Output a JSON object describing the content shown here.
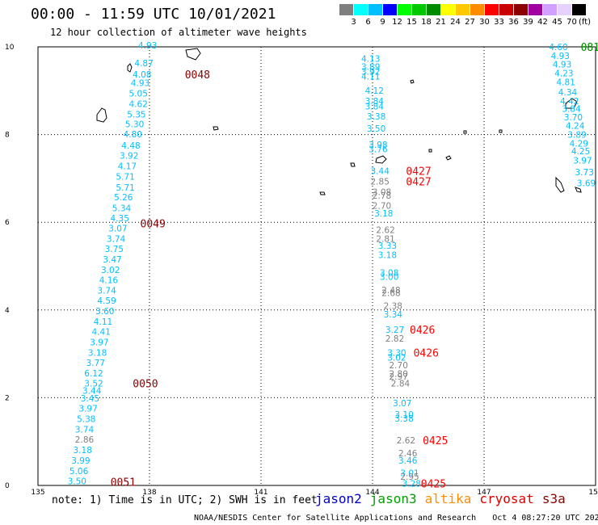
{
  "header": {
    "title": "00:00 - 11:59 UTC 10/01/2021",
    "subtitle": "12 hour collection of altimeter wave heights"
  },
  "color_scale": {
    "labels": [
      "3",
      "6",
      "9",
      "12",
      "15",
      "18",
      "21",
      "24",
      "27",
      "30",
      "33",
      "36",
      "39",
      "42",
      "45",
      "70"
    ],
    "units": "(ft)",
    "colors": [
      "#7f7f7f",
      "#00ffff",
      "#00bfff",
      "#0000ff",
      "#00ff00",
      "#00c800",
      "#008c00",
      "#ffff00",
      "#ffc800",
      "#ff8c00",
      "#ff0000",
      "#c80000",
      "#8c0000",
      "#a000a0",
      "#d2a0ff",
      "#e6d2ff",
      "#000000"
    ]
  },
  "axes": {
    "x_ticks": [
      "135",
      "138",
      "141",
      "144",
      "147",
      "150"
    ],
    "y_ticks": [
      "0",
      "2",
      "4",
      "6",
      "8",
      "10"
    ],
    "x_range": [
      135,
      150
    ],
    "y_range": [
      0,
      10
    ]
  },
  "time_labels": [
    {
      "text": "0048",
      "lon": 138.95,
      "lat": 9.37,
      "color": "#8b0000"
    },
    {
      "text": "0049",
      "lon": 137.75,
      "lat": 5.98,
      "color": "#8b0000"
    },
    {
      "text": "0050",
      "lon": 137.55,
      "lat": 2.33,
      "color": "#8b0000"
    },
    {
      "text": "0051",
      "lon": 136.95,
      "lat": 0.08,
      "color": "#8b0000"
    },
    {
      "text": "0427",
      "lon": 144.9,
      "lat": 7.17,
      "color": "#ff0000"
    },
    {
      "text": "0427",
      "lon": 144.9,
      "lat": 6.93,
      "color": "#ff0000"
    },
    {
      "text": "0426",
      "lon": 145.0,
      "lat": 3.55,
      "color": "#ff0000"
    },
    {
      "text": "0426",
      "lon": 145.1,
      "lat": 3.03,
      "color": "#ff0000"
    },
    {
      "text": "0425",
      "lon": 145.35,
      "lat": 1.03,
      "color": "#ff0000"
    },
    {
      "text": "0425",
      "lon": 145.3,
      "lat": 0.05,
      "color": "#ff0000"
    },
    {
      "text": "081",
      "lon": 149.6,
      "lat": 10.0,
      "color": "#008c00"
    }
  ],
  "tracks": [
    {
      "name": "jason3-track-1",
      "points": [
        {
          "v": "4.93",
          "lon": 137.95,
          "lat": 10.04,
          "color": "#00bfff"
        },
        {
          "v": "4.87",
          "lon": 137.85,
          "lat": 9.63,
          "color": "#00bfff"
        },
        {
          "v": "4.08",
          "lon": 137.8,
          "lat": 9.37,
          "color": "#00bfff"
        },
        {
          "v": "4.93",
          "lon": 137.75,
          "lat": 9.18,
          "color": "#00bfff"
        },
        {
          "v": "5.05",
          "lon": 137.7,
          "lat": 8.94,
          "color": "#00bfff"
        },
        {
          "v": "4.62",
          "lon": 137.7,
          "lat": 8.7,
          "color": "#00bfff"
        },
        {
          "v": "5.35",
          "lon": 137.65,
          "lat": 8.46,
          "color": "#00bfff"
        },
        {
          "v": "5.30",
          "lon": 137.6,
          "lat": 8.24,
          "color": "#00bfff"
        },
        {
          "v": "4.80",
          "lon": 137.55,
          "lat": 8.01,
          "color": "#00bfff"
        },
        {
          "v": "4.48",
          "lon": 137.5,
          "lat": 7.75,
          "color": "#00bfff"
        },
        {
          "v": "3.92",
          "lon": 137.45,
          "lat": 7.52,
          "color": "#00bfff"
        },
        {
          "v": "4.17",
          "lon": 137.4,
          "lat": 7.28,
          "color": "#00bfff"
        },
        {
          "v": "5.71",
          "lon": 137.35,
          "lat": 7.04,
          "color": "#00bfff"
        },
        {
          "v": "5.71",
          "lon": 137.35,
          "lat": 6.8,
          "color": "#00bfff"
        },
        {
          "v": "5.26",
          "lon": 137.3,
          "lat": 6.57,
          "color": "#00bfff"
        },
        {
          "v": "5.34",
          "lon": 137.25,
          "lat": 6.33,
          "color": "#00bfff"
        },
        {
          "v": "4.35",
          "lon": 137.2,
          "lat": 6.1,
          "color": "#00bfff"
        },
        {
          "v": "3.07",
          "lon": 137.15,
          "lat": 5.87,
          "color": "#00bfff"
        },
        {
          "v": "3.74",
          "lon": 137.1,
          "lat": 5.63,
          "color": "#00bfff"
        },
        {
          "v": "3.75",
          "lon": 137.05,
          "lat": 5.4,
          "color": "#00bfff"
        },
        {
          "v": "3.47",
          "lon": 137.0,
          "lat": 5.16,
          "color": "#00bfff"
        },
        {
          "v": "3.02",
          "lon": 136.95,
          "lat": 4.92,
          "color": "#00bfff"
        },
        {
          "v": "4.16",
          "lon": 136.9,
          "lat": 4.69,
          "color": "#00bfff"
        },
        {
          "v": "3.74",
          "lon": 136.85,
          "lat": 4.45,
          "color": "#00bfff"
        },
        {
          "v": "4.59",
          "lon": 136.85,
          "lat": 4.22,
          "color": "#00bfff"
        },
        {
          "v": "3.60",
          "lon": 136.8,
          "lat": 3.98,
          "color": "#00bfff"
        },
        {
          "v": "4.11",
          "lon": 136.75,
          "lat": 3.74,
          "color": "#00bfff"
        },
        {
          "v": "4.41",
          "lon": 136.7,
          "lat": 3.51,
          "color": "#00bfff"
        },
        {
          "v": "3.97",
          "lon": 136.65,
          "lat": 3.27,
          "color": "#00bfff"
        },
        {
          "v": "3.18",
          "lon": 136.6,
          "lat": 3.03,
          "color": "#00bfff"
        },
        {
          "v": "3.77",
          "lon": 136.55,
          "lat": 2.8,
          "color": "#00bfff"
        },
        {
          "v": "6.12",
          "lon": 136.5,
          "lat": 2.56,
          "color": "#00bfff"
        },
        {
          "v": "3.52",
          "lon": 136.5,
          "lat": 2.33,
          "color": "#00bfff"
        },
        {
          "v": "3.44",
          "lon": 136.45,
          "lat": 2.16,
          "color": "#00bfff"
        },
        {
          "v": "3.45",
          "lon": 136.4,
          "lat": 1.99,
          "color": "#00bfff"
        },
        {
          "v": "3.97",
          "lon": 136.35,
          "lat": 1.76,
          "color": "#00bfff"
        },
        {
          "v": "5.38",
          "lon": 136.3,
          "lat": 1.52,
          "color": "#00bfff"
        },
        {
          "v": "3.74",
          "lon": 136.25,
          "lat": 1.28,
          "color": "#00bfff"
        },
        {
          "v": "2.86",
          "lon": 136.25,
          "lat": 1.05,
          "color": "#7f7f7f"
        },
        {
          "v": "3.18",
          "lon": 136.2,
          "lat": 0.81,
          "color": "#00bfff"
        },
        {
          "v": "3.99",
          "lon": 136.15,
          "lat": 0.57,
          "color": "#00bfff"
        },
        {
          "v": "5.06",
          "lon": 136.1,
          "lat": 0.33,
          "color": "#00bfff"
        },
        {
          "v": "3.50",
          "lon": 136.05,
          "lat": 0.1,
          "color": "#00bfff"
        }
      ]
    },
    {
      "name": "jason3-track-2",
      "points": [
        {
          "v": "4.13",
          "lon": 143.95,
          "lat": 9.73,
          "color": "#00bfff"
        },
        {
          "v": "3.89",
          "lon": 143.95,
          "lat": 9.55,
          "color": "#00bfff"
        },
        {
          "v": "3.92",
          "lon": 143.95,
          "lat": 9.44,
          "color": "#00bfff"
        },
        {
          "v": "4.11",
          "lon": 143.95,
          "lat": 9.33,
          "color": "#00bfff"
        },
        {
          "v": "4.12",
          "lon": 144.05,
          "lat": 9.01,
          "color": "#00bfff"
        },
        {
          "v": "3.84",
          "lon": 144.05,
          "lat": 8.77,
          "color": "#00bfff"
        },
        {
          "v": "3.84",
          "lon": 144.05,
          "lat": 8.65,
          "color": "#00bfff"
        },
        {
          "v": "3.38",
          "lon": 144.1,
          "lat": 8.42,
          "color": "#00bfff"
        },
        {
          "v": "3.50",
          "lon": 144.1,
          "lat": 8.14,
          "color": "#00bfff"
        },
        {
          "v": "3.98",
          "lon": 144.15,
          "lat": 7.77,
          "color": "#00bfff"
        },
        {
          "v": "3.76",
          "lon": 144.15,
          "lat": 7.67,
          "color": "#00bfff"
        },
        {
          "v": "3.44",
          "lon": 144.2,
          "lat": 7.17,
          "color": "#00bfff"
        },
        {
          "v": "2.85",
          "lon": 144.2,
          "lat": 6.93,
          "color": "#7f7f7f"
        },
        {
          "v": "3.08",
          "lon": 144.25,
          "lat": 6.69,
          "color": "#7f7f7f"
        },
        {
          "v": "2.78",
          "lon": 144.25,
          "lat": 6.61,
          "color": "#7f7f7f"
        },
        {
          "v": "2.70",
          "lon": 144.25,
          "lat": 6.38,
          "color": "#7f7f7f"
        },
        {
          "v": "3.18",
          "lon": 144.3,
          "lat": 6.21,
          "color": "#00bfff"
        },
        {
          "v": "2.62",
          "lon": 144.35,
          "lat": 5.83,
          "color": "#7f7f7f"
        },
        {
          "v": "2.81",
          "lon": 144.35,
          "lat": 5.63,
          "color": "#7f7f7f"
        },
        {
          "v": "3.33",
          "lon": 144.4,
          "lat": 5.47,
          "color": "#00bfff"
        },
        {
          "v": "3.18",
          "lon": 144.4,
          "lat": 5.26,
          "color": "#00bfff"
        },
        {
          "v": "3.08",
          "lon": 144.45,
          "lat": 4.85,
          "color": "#00bfff"
        },
        {
          "v": "3.00",
          "lon": 144.45,
          "lat": 4.76,
          "color": "#00bfff"
        },
        {
          "v": "2.48",
          "lon": 144.5,
          "lat": 4.46,
          "color": "#7f7f7f"
        },
        {
          "v": "2.68",
          "lon": 144.5,
          "lat": 4.39,
          "color": "#7f7f7f"
        },
        {
          "v": "2.38",
          "lon": 144.55,
          "lat": 4.1,
          "color": "#7f7f7f"
        },
        {
          "v": "3.34",
          "lon": 144.55,
          "lat": 3.9,
          "color": "#00bfff"
        },
        {
          "v": "3.27",
          "lon": 144.6,
          "lat": 3.55,
          "color": "#00bfff"
        },
        {
          "v": "2.82",
          "lon": 144.6,
          "lat": 3.35,
          "color": "#7f7f7f"
        },
        {
          "v": "3.30",
          "lon": 144.65,
          "lat": 3.03,
          "color": "#00bfff"
        },
        {
          "v": "3.02",
          "lon": 144.65,
          "lat": 2.92,
          "color": "#00bfff"
        },
        {
          "v": "2.70",
          "lon": 144.7,
          "lat": 2.74,
          "color": "#7f7f7f"
        },
        {
          "v": "2.80",
          "lon": 144.7,
          "lat": 2.55,
          "color": "#7f7f7f"
        },
        {
          "v": "2.97",
          "lon": 144.7,
          "lat": 2.49,
          "color": "#7f7f7f"
        },
        {
          "v": "2.84",
          "lon": 144.75,
          "lat": 2.33,
          "color": "#7f7f7f"
        },
        {
          "v": "3.07",
          "lon": 144.8,
          "lat": 1.88,
          "color": "#00bfff"
        },
        {
          "v": "3.10",
          "lon": 144.85,
          "lat": 1.62,
          "color": "#00bfff"
        },
        {
          "v": "3.38",
          "lon": 144.85,
          "lat": 1.53,
          "color": "#00bfff"
        },
        {
          "v": "2.62",
          "lon": 144.9,
          "lat": 1.03,
          "color": "#7f7f7f"
        },
        {
          "v": "2.46",
          "lon": 144.95,
          "lat": 0.74,
          "color": "#7f7f7f"
        },
        {
          "v": "3.46",
          "lon": 144.95,
          "lat": 0.57,
          "color": "#00bfff"
        },
        {
          "v": "3.01",
          "lon": 145.0,
          "lat": 0.29,
          "color": "#00bfff"
        },
        {
          "v": "2.95",
          "lon": 145.0,
          "lat": 0.2,
          "color": "#7f7f7f"
        },
        {
          "v": "3.28",
          "lon": 145.05,
          "lat": 0.05,
          "color": "#00bfff"
        }
      ]
    },
    {
      "name": "jason3-track-3",
      "points": [
        {
          "v": "4.60",
          "lon": 149.0,
          "lat": 10.0,
          "color": "#00bfff"
        },
        {
          "v": "4.93",
          "lon": 149.05,
          "lat": 9.8,
          "color": "#00bfff"
        },
        {
          "v": "4.93",
          "lon": 149.1,
          "lat": 9.6,
          "color": "#00bfff"
        },
        {
          "v": "4.23",
          "lon": 149.15,
          "lat": 9.4,
          "color": "#00bfff"
        },
        {
          "v": "4.81",
          "lon": 149.2,
          "lat": 9.2,
          "color": "#00bfff"
        },
        {
          "v": "4.34",
          "lon": 149.25,
          "lat": 8.97,
          "color": "#00bfff"
        },
        {
          "v": "4.42",
          "lon": 149.3,
          "lat": 8.77,
          "color": "#00bfff"
        },
        {
          "v": "3.84",
          "lon": 149.35,
          "lat": 8.59,
          "color": "#00bfff"
        },
        {
          "v": "3.70",
          "lon": 149.4,
          "lat": 8.4,
          "color": "#00bfff"
        },
        {
          "v": "4.24",
          "lon": 149.45,
          "lat": 8.2,
          "color": "#00bfff"
        },
        {
          "v": "3.89",
          "lon": 149.5,
          "lat": 8.0,
          "color": "#00bfff"
        },
        {
          "v": "4.29",
          "lon": 149.55,
          "lat": 7.8,
          "color": "#00bfff"
        },
        {
          "v": "4.25",
          "lon": 149.6,
          "lat": 7.62,
          "color": "#00bfff"
        },
        {
          "v": "3.97",
          "lon": 149.65,
          "lat": 7.41,
          "color": "#00bfff"
        },
        {
          "v": "3.73",
          "lon": 149.7,
          "lat": 7.15,
          "color": "#00bfff"
        },
        {
          "v": "3.69",
          "lon": 149.75,
          "lat": 6.9,
          "color": "#00bfff"
        }
      ]
    }
  ],
  "footer": {
    "note": "note: 1) Time is in UTC; 2) SWH is in feet",
    "satellites": [
      {
        "name": "jason2",
        "color": "#0000cc"
      },
      {
        "name": "jason3",
        "color": "#00a000"
      },
      {
        "name": "altika",
        "color": "#ff8c00"
      },
      {
        "name": "cryosat",
        "color": "#dd0000"
      },
      {
        "name": "s3a",
        "color": "#8b0000"
      }
    ],
    "credit": "NOAA/NESDIS Center for Satellite Applications and Research",
    "timestamp": "Oct  4 08:27:20 UTC 2021"
  }
}
